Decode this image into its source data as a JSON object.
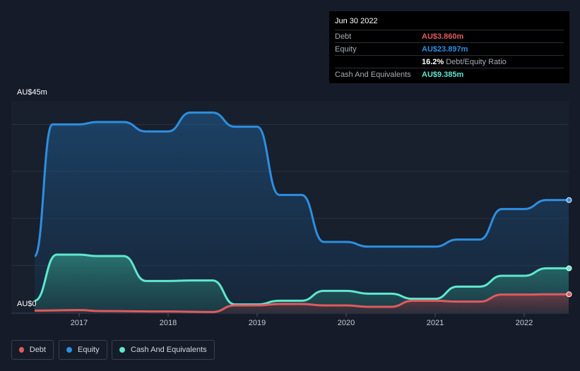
{
  "tooltip": {
    "date": "Jun 30 2022",
    "debt_label": "Debt",
    "debt_value": "AU$3.860m",
    "equity_label": "Equity",
    "equity_value": "AU$23.897m",
    "ratio_value": "16.2%",
    "ratio_label": "Debt/Equity Ratio",
    "cash_label": "Cash And Equivalents",
    "cash_value": "AU$9.385m"
  },
  "legend": {
    "debt": "Debt",
    "equity": "Equity",
    "cash": "Cash And Equivalents"
  },
  "colors": {
    "debt": "#e05a5f",
    "equity": "#2d8fe0",
    "cash": "#5ee8cf"
  },
  "chart_data": {
    "type": "area",
    "ylim": [
      0,
      45
    ],
    "y_top_label": "AU$45m",
    "y_bottom_label": "AU$0",
    "x_ticks": [
      "2017",
      "2018",
      "2019",
      "2020",
      "2021",
      "2022"
    ],
    "series": [
      {
        "name": "Equity",
        "points": [
          [
            2016.5,
            12.0
          ],
          [
            2016.7,
            40.0
          ],
          [
            2017.0,
            40.0
          ],
          [
            2017.2,
            40.5
          ],
          [
            2017.5,
            40.5
          ],
          [
            2017.75,
            38.5
          ],
          [
            2018.0,
            38.5
          ],
          [
            2018.25,
            42.5
          ],
          [
            2018.5,
            42.5
          ],
          [
            2018.75,
            39.5
          ],
          [
            2019.0,
            39.5
          ],
          [
            2019.25,
            25.0
          ],
          [
            2019.5,
            25.0
          ],
          [
            2019.75,
            15.0
          ],
          [
            2020.0,
            15.0
          ],
          [
            2020.25,
            14.0
          ],
          [
            2021.0,
            14.0
          ],
          [
            2021.25,
            15.5
          ],
          [
            2021.5,
            15.5
          ],
          [
            2021.75,
            22.0
          ],
          [
            2022.0,
            22.0
          ],
          [
            2022.25,
            23.897
          ],
          [
            2022.5,
            23.897
          ]
        ]
      },
      {
        "name": "Cash And Equivalents",
        "points": [
          [
            2016.5,
            2.5
          ],
          [
            2016.75,
            12.3
          ],
          [
            2017.0,
            12.3
          ],
          [
            2017.2,
            12.0
          ],
          [
            2017.5,
            12.0
          ],
          [
            2017.75,
            6.7
          ],
          [
            2018.0,
            6.7
          ],
          [
            2018.25,
            6.8
          ],
          [
            2018.5,
            6.8
          ],
          [
            2018.75,
            1.7
          ],
          [
            2019.0,
            1.7
          ],
          [
            2019.25,
            2.5
          ],
          [
            2019.5,
            2.5
          ],
          [
            2019.75,
            4.6
          ],
          [
            2020.0,
            4.6
          ],
          [
            2020.25,
            4.0
          ],
          [
            2020.5,
            4.0
          ],
          [
            2020.75,
            2.9
          ],
          [
            2021.0,
            2.9
          ],
          [
            2021.25,
            5.5
          ],
          [
            2021.5,
            5.5
          ],
          [
            2021.75,
            7.8
          ],
          [
            2022.0,
            7.8
          ],
          [
            2022.25,
            9.385
          ],
          [
            2022.5,
            9.385
          ]
        ]
      },
      {
        "name": "Debt",
        "points": [
          [
            2016.5,
            0.4
          ],
          [
            2017.0,
            0.5
          ],
          [
            2017.25,
            0.3
          ],
          [
            2018.0,
            0.2
          ],
          [
            2018.5,
            0.1
          ],
          [
            2018.75,
            1.5
          ],
          [
            2019.0,
            1.5
          ],
          [
            2019.25,
            1.8
          ],
          [
            2019.5,
            1.8
          ],
          [
            2019.75,
            1.5
          ],
          [
            2020.0,
            1.5
          ],
          [
            2020.25,
            1.2
          ],
          [
            2020.5,
            1.2
          ],
          [
            2020.75,
            2.5
          ],
          [
            2021.0,
            2.5
          ],
          [
            2021.25,
            2.3
          ],
          [
            2021.5,
            2.3
          ],
          [
            2021.75,
            3.8
          ],
          [
            2022.0,
            3.8
          ],
          [
            2022.25,
            3.86
          ],
          [
            2022.5,
            3.86
          ]
        ]
      }
    ]
  }
}
